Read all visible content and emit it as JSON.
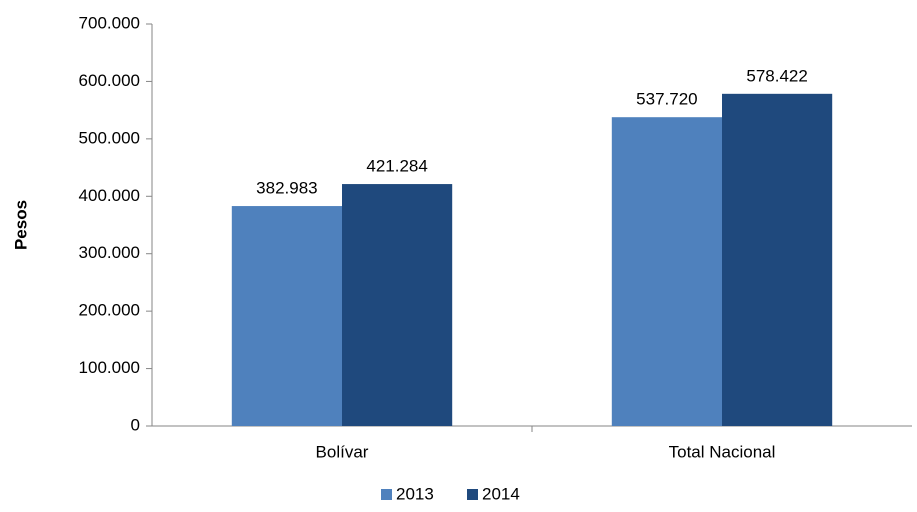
{
  "chart_data": {
    "type": "bar",
    "y_label": "Pesos",
    "categories": [
      "Bolívar",
      "Total Nacional"
    ],
    "series": [
      {
        "name": "2013",
        "color": "#4f81bd",
        "values": [
          382983,
          537720
        ],
        "value_labels": [
          "382.983",
          "537.720"
        ]
      },
      {
        "name": "2014",
        "color": "#1f497d",
        "values": [
          421284,
          578422
        ],
        "value_labels": [
          "421.284",
          "578.422"
        ]
      }
    ],
    "ylim": [
      0,
      700000
    ],
    "yticks": [
      0,
      {
        "value": 100000,
        "label": "100.000"
      },
      {
        "value": 200000,
        "label": "200.000"
      },
      {
        "value": 300000,
        "label": "300.000"
      },
      {
        "value": 400000,
        "label": "400.000"
      },
      {
        "value": 500000,
        "label": "500.000"
      },
      {
        "value": 600000,
        "label": "600.000"
      },
      {
        "value": 700000,
        "label": "700.000"
      }
    ],
    "grid": false,
    "legend": "bottom"
  }
}
